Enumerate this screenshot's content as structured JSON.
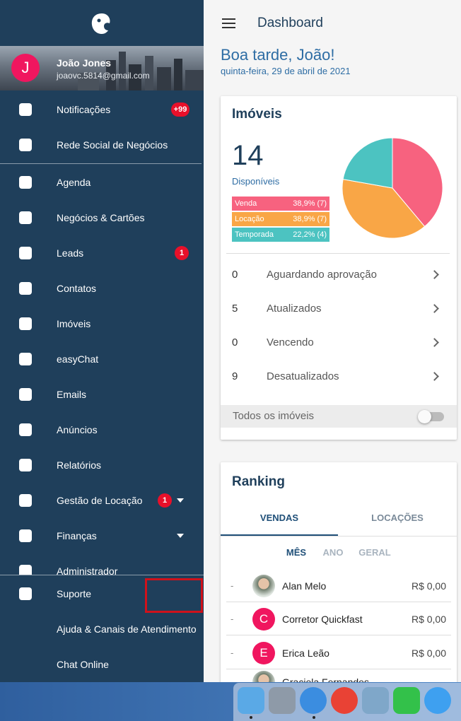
{
  "header_title": "Dashboard",
  "user": {
    "initial": "J",
    "name": "João Jones",
    "email": "joaovc.5814@gmail.com"
  },
  "menu": [
    {
      "label": "Notificações",
      "badge": "+99"
    },
    {
      "label": "Rede Social de Negócios"
    },
    {
      "label": "Agenda"
    },
    {
      "label": "Negócios & Cartões"
    },
    {
      "label": "Leads",
      "badge": 1
    },
    {
      "label": "Contatos"
    },
    {
      "label": "Imóveis"
    },
    {
      "label": "easyChat"
    },
    {
      "label": "Emails"
    },
    {
      "label": "Anúncios"
    },
    {
      "label": "Relatórios"
    },
    {
      "label": "Gestão de Locação",
      "badge": 1,
      "dropdown": true
    },
    {
      "label": "Finanças",
      "dropdown": true
    },
    {
      "label": "Administrador"
    }
  ],
  "bottom_menu": [
    {
      "label": "Suporte"
    },
    {
      "label": "Ajuda & Canais de Atendimento"
    },
    {
      "label": "Chat Online"
    }
  ],
  "greeting": "Boa tarde, João!",
  "date": "quinta-feira, 29 de abril de 2021",
  "imoveis": {
    "title": "Imóveis",
    "total": 14,
    "total_label": "Disponíveis",
    "breakdown": [
      {
        "name": "Venda",
        "value": 38.9,
        "count": 7,
        "label": "38,9% (7)",
        "color": "#f7627f"
      },
      {
        "name": "Locação",
        "value": 38.9,
        "count": 7,
        "label": "38,9% (7)",
        "color": "#f9a646"
      },
      {
        "name": "Temporada",
        "value": 22.2,
        "count": 4,
        "label": "22,2% (4)",
        "color": "#4cc3c1"
      }
    ],
    "status": [
      {
        "count": 0,
        "label": "Aguardando aprovação"
      },
      {
        "count": 5,
        "label": "Atualizados"
      },
      {
        "count": 0,
        "label": "Vencendo"
      },
      {
        "count": 9,
        "label": "Desatualizados"
      }
    ],
    "toggle_label": "Todos os imóveis"
  },
  "ranking": {
    "title": "Ranking",
    "tabs": [
      "VENDAS",
      "LOCAÇÕES"
    ],
    "periods": [
      "MÊS",
      "ANO",
      "GERAL"
    ],
    "rows": [
      {
        "position": "-",
        "name": "Alan Melo",
        "amount": "R$ 0,00"
      },
      {
        "position": "-",
        "initial": "C",
        "name": "Corretor Quickfast",
        "amount": "R$ 0,00"
      },
      {
        "position": "-",
        "initial": "E",
        "name": "Erica Leão",
        "amount": "R$ 0,00"
      },
      {
        "name": "Graciela Fernandes"
      }
    ]
  }
}
